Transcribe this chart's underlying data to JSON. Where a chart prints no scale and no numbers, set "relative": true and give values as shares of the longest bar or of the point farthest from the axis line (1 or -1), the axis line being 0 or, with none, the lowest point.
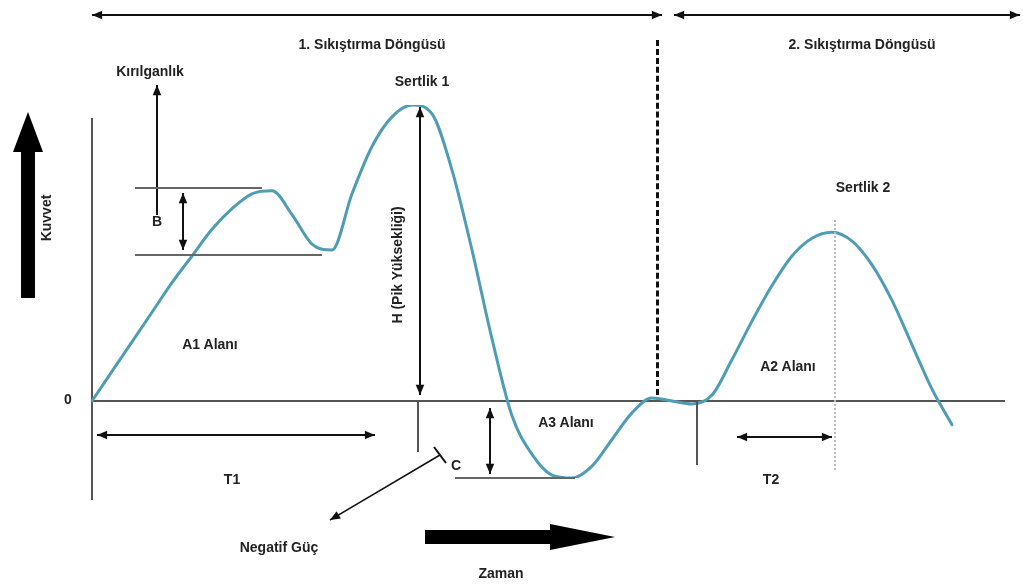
{
  "chart_data": {
    "type": "line",
    "relative": true,
    "marker": "none",
    "legend": false,
    "ylabel": "Kuvvet",
    "categories": [
      null,
      null,
      null,
      null,
      null,
      null,
      null,
      null,
      null,
      null,
      null,
      null,
      null,
      null,
      null,
      null,
      null,
      null,
      null,
      null,
      null,
      null,
      null,
      null,
      null,
      null,
      null,
      null,
      null,
      null,
      null,
      null,
      null,
      null,
      null,
      null,
      null,
      null,
      null,
      null,
      null,
      null,
      null,
      null
    ],
    "series": [
      {
        "color": "#4f9db5",
        "values": [
          0,
          0.1,
          0.2,
          0.3,
          0.4,
          0.49,
          0.58,
          0.65,
          0.7,
          0.71,
          0.63,
          0.53,
          0.51,
          0.7,
          0.86,
          0.96,
          1.0,
          0.97,
          0.78,
          0.51,
          0.21,
          -0.05,
          -0.18,
          -0.25,
          -0.26,
          -0.22,
          -0.13,
          -0.04,
          0.01,
          0,
          -0.01,
          0.02,
          0.14,
          0.27,
          0.39,
          0.49,
          0.55,
          0.57,
          0.54,
          0.46,
          0.34,
          0.19,
          0.04,
          -0.08
        ]
      }
    ],
    "annotations": [
      "1. Sıkıştırma Döngüsü",
      "2. Sıkıştırma Döngüsü",
      "Kırılganlık",
      "Sertlik 1",
      "Sertlik 2",
      "B",
      "H (Pik Yüksekliği)",
      "A1 Alanı",
      "A2 Alanı",
      "A3 Alanı",
      "C",
      "T1",
      "T2",
      "Negatif Güç",
      "0",
      "Zaman"
    ]
  }
}
